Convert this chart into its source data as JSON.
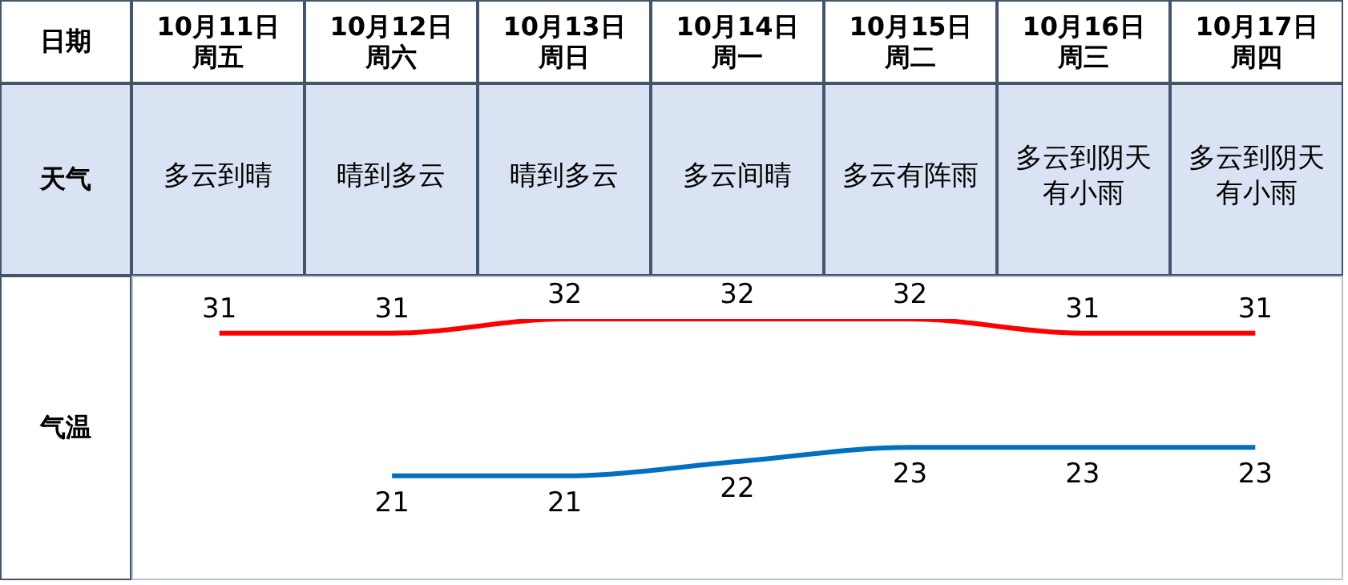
{
  "chart_data": {
    "type": "line",
    "categories": [
      "10月11日周五",
      "10月12日周六",
      "10月13日周日",
      "10月14日周一",
      "10月15日周二",
      "10月16日周三",
      "10月17日周四"
    ],
    "series": [
      {
        "color": "#ff0000",
        "values": [
          31,
          31,
          32,
          32,
          32,
          31,
          31
        ]
      },
      {
        "color": "#0070c0",
        "values": [
          null,
          21,
          21,
          22,
          23,
          23,
          23
        ]
      }
    ],
    "data_labels": true,
    "marker": "none",
    "line_style": "solid",
    "annotations": [
      "日期",
      "天气",
      "气温",
      "多云到晴",
      "晴到多云",
      "晴到多云",
      "多云间晴",
      "多云有阵雨",
      "多云到阴天有小雨",
      "多云到阴天有小雨"
    ]
  }
}
